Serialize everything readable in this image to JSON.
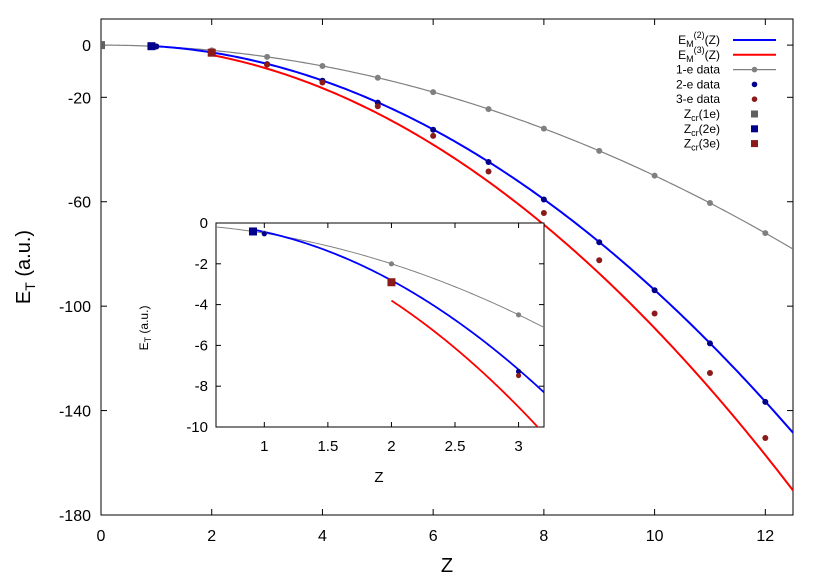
{
  "chart_data": {
    "type": "line",
    "main": {
      "xlabel": "Z",
      "ylabel_main": "E",
      "ylabel_sub": "T",
      "ylabel_unit": " (a.u.)",
      "xlim": [
        0,
        12.5
      ],
      "ylim": [
        -180,
        10
      ],
      "xticks": [
        0,
        2,
        4,
        6,
        8,
        10,
        12
      ],
      "yticks": [
        0,
        -20,
        -60,
        -100,
        -140,
        -180
      ],
      "grid": false,
      "legend_position": "top-right"
    },
    "inset": {
      "xlabel": "Z",
      "ylabel_main": "E",
      "ylabel_sub": "T",
      "ylabel_unit": " (a.u.)",
      "xlim": [
        0.62,
        3.2
      ],
      "ylim": [
        -10,
        0
      ],
      "xticks": [
        1,
        1.5,
        2,
        2.5,
        3
      ],
      "xtick_labels": [
        "1",
        "1.5",
        "2",
        "2.5",
        "3"
      ],
      "yticks": [
        0,
        -2,
        -4,
        -6,
        -8,
        -10
      ]
    },
    "legend": [
      {
        "main": "E",
        "sub": "M",
        "sup": "(2)",
        "tail": "(Z)",
        "kind": "line",
        "color": "#0000ff"
      },
      {
        "main": "E",
        "sub": "M",
        "sup": "(3)",
        "tail": "(Z)",
        "kind": "line",
        "color": "#ff0000"
      },
      {
        "main": "1-e data",
        "kind": "line-point",
        "color": "#808080"
      },
      {
        "main": "2-e data",
        "kind": "point",
        "color": "#00008b"
      },
      {
        "main": "3-e data",
        "kind": "point",
        "color": "#8b1a1a"
      },
      {
        "main": "Z",
        "sub": "cr",
        "tail": "(1e)",
        "kind": "square",
        "color": "#606060"
      },
      {
        "main": "Z",
        "sub": "cr",
        "tail": "(2e)",
        "kind": "square",
        "color": "#00008b"
      },
      {
        "main": "Z",
        "sub": "cr",
        "tail": "(3e)",
        "kind": "square",
        "color": "#8b1a1a"
      }
    ],
    "series": [
      {
        "name": "1-e data",
        "color": "#808080",
        "x": [
          1,
          2,
          3,
          4,
          5,
          6,
          7,
          8,
          9,
          10,
          11,
          12
        ],
        "y": [
          -0.5,
          -2.0,
          -4.5,
          -8.0,
          -12.5,
          -18.0,
          -24.5,
          -32.0,
          -40.5,
          -50.0,
          -60.5,
          -72.0
        ]
      },
      {
        "name": "2-e data",
        "color": "#00008b",
        "x": [
          1,
          2,
          3,
          4,
          5,
          6,
          7,
          8,
          9,
          10,
          11,
          12
        ],
        "y": [
          -0.528,
          -2.904,
          -7.28,
          -13.66,
          -22.03,
          -32.41,
          -44.78,
          -59.16,
          -75.53,
          -93.91,
          -114.28,
          -136.66
        ]
      },
      {
        "name": "3-e data",
        "color": "#8b1a1a",
        "x": [
          2,
          3,
          4,
          5,
          6,
          7,
          8,
          9,
          10,
          11,
          12
        ],
        "y": [
          -2.904,
          -7.478,
          -14.32,
          -23.43,
          -34.78,
          -48.41,
          -64.3,
          -82.4,
          -102.8,
          -125.6,
          -150.5
        ]
      },
      {
        "name": "Z_cr(1e)",
        "color": "#606060",
        "x": [
          0
        ],
        "y": [
          0
        ]
      },
      {
        "name": "Z_cr(2e)",
        "color": "#00008b",
        "x": [
          0.911
        ],
        "y": [
          -0.415
        ]
      },
      {
        "name": "Z_cr(3e)",
        "color": "#8b1a1a",
        "x": [
          2.0
        ],
        "y": [
          -2.904
        ]
      }
    ]
  }
}
